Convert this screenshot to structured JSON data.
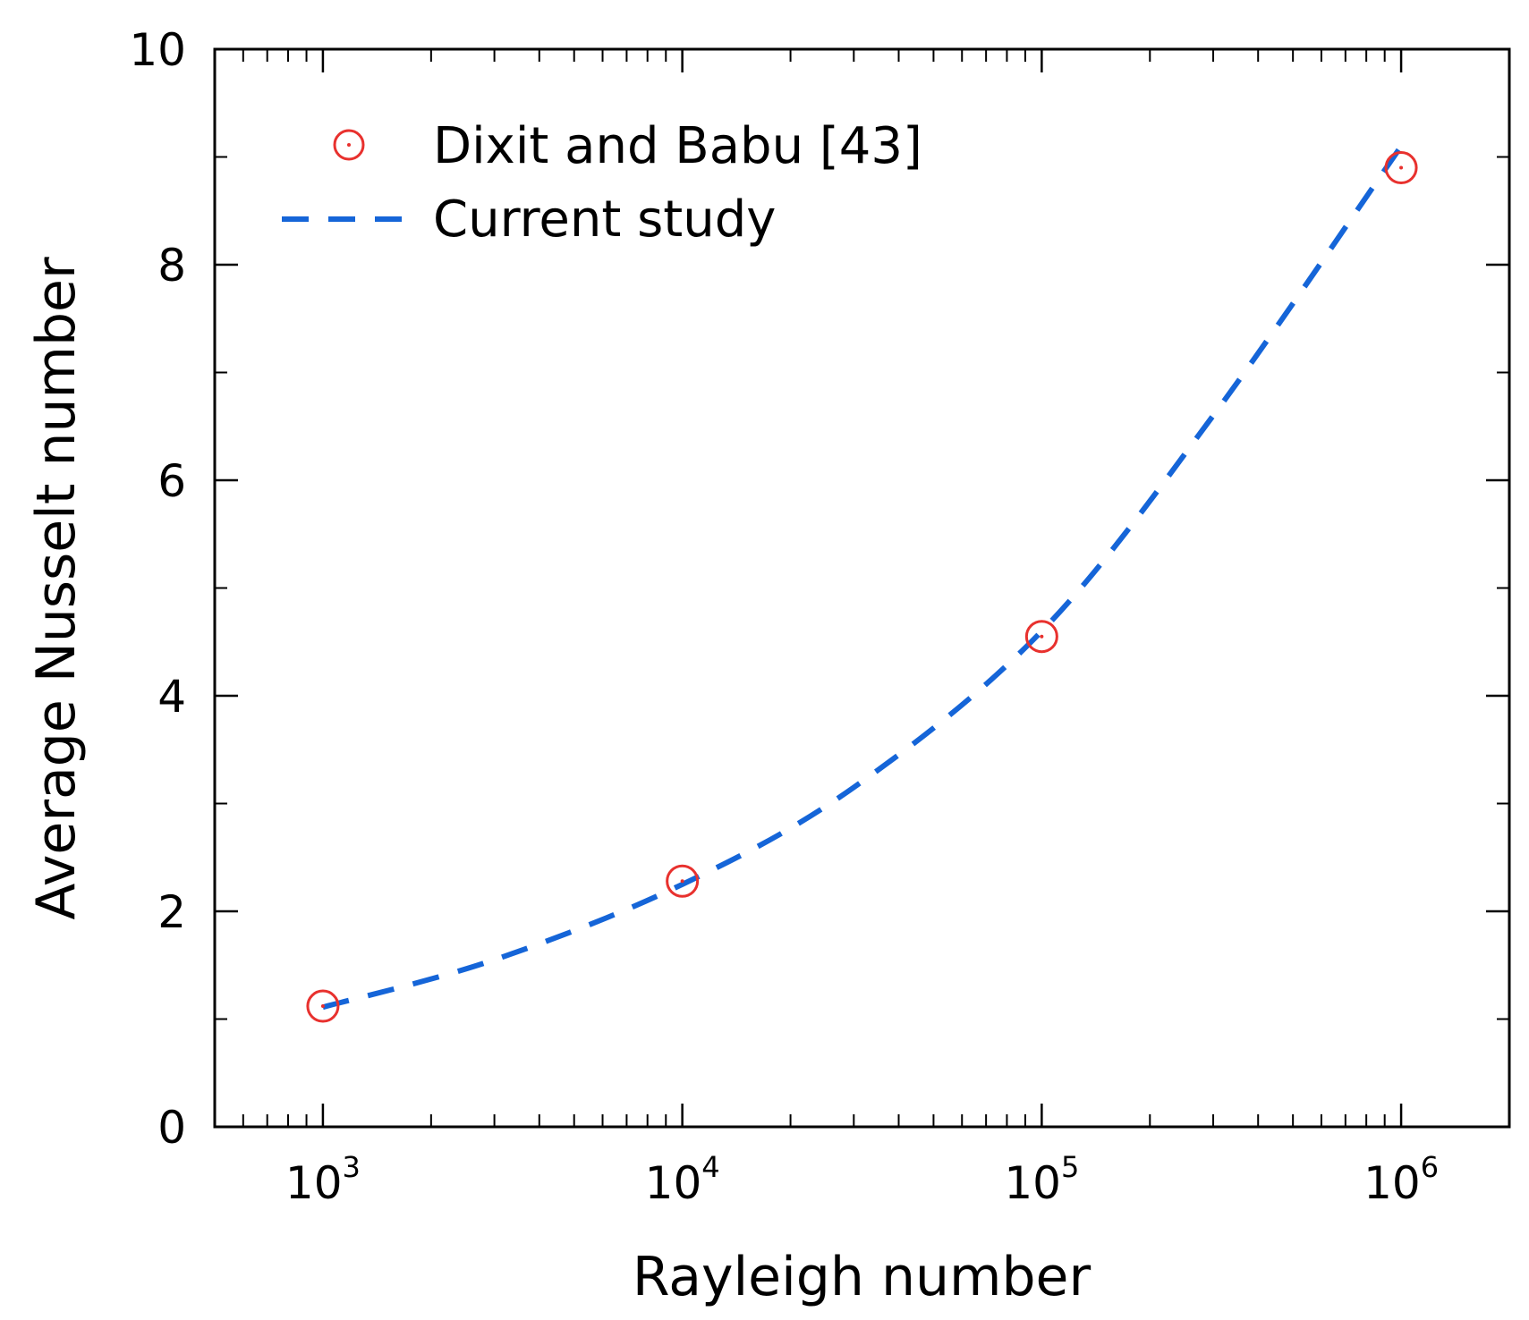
{
  "chart_data": {
    "type": "scatter",
    "title": "",
    "xlabel": "Rayleigh number",
    "ylabel": "Average Nusselt number",
    "xscale": "log",
    "xlim": [
      500,
      2000000
    ],
    "ylim": [
      0,
      10
    ],
    "grid": false,
    "legend_position": "top-left",
    "x_ticks": [
      {
        "base": "10",
        "exp": "3",
        "value": 1000
      },
      {
        "base": "10",
        "exp": "4",
        "value": 10000
      },
      {
        "base": "10",
        "exp": "5",
        "value": 100000
      },
      {
        "base": "10",
        "exp": "6",
        "value": 1000000
      }
    ],
    "y_ticks": [
      {
        "label": "0",
        "value": 0
      },
      {
        "label": "2",
        "value": 2
      },
      {
        "label": "4",
        "value": 4
      },
      {
        "label": "6",
        "value": 6
      },
      {
        "label": "8",
        "value": 8
      },
      {
        "label": "10",
        "value": 10
      }
    ],
    "series": [
      {
        "name": "Dixit and Babu [43]",
        "style": "markers",
        "color": "#e8312e",
        "x": [
          1000,
          10000,
          100000,
          1000000
        ],
        "y": [
          1.12,
          2.28,
          4.55,
          8.9
        ]
      },
      {
        "name": "Current study",
        "style": "dashed-line",
        "color": "#1565d8",
        "x": [
          1000,
          3000,
          10000,
          30000,
          100000,
          300000,
          1000000
        ],
        "y": [
          1.11,
          1.55,
          2.25,
          3.15,
          4.6,
          6.6,
          9.1
        ]
      }
    ]
  }
}
